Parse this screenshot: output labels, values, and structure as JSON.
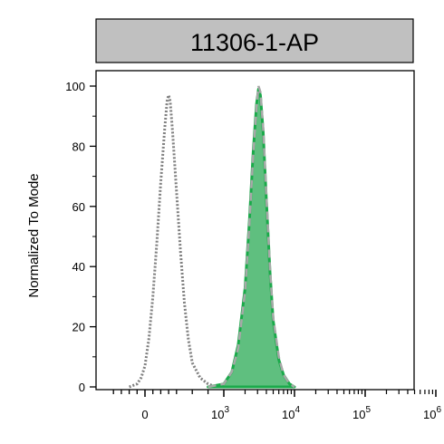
{
  "chart_data": {
    "type": "histogram",
    "title": "11306-1-AP",
    "ylabel": "Normalized To Mode",
    "xlabel": "",
    "x_scale": "biexponential",
    "ylim": [
      0,
      100
    ],
    "y_ticks": [
      0,
      20,
      40,
      60,
      80,
      100
    ],
    "x_ticks": [
      {
        "value": 0,
        "base": "0",
        "exp": ""
      },
      {
        "value": 1000,
        "base": "10",
        "exp": "3"
      },
      {
        "value": 10000,
        "base": "10",
        "exp": "4"
      },
      {
        "value": 100000,
        "base": "10",
        "exp": "5"
      },
      {
        "value": 1000000,
        "base": "10",
        "exp": "6"
      }
    ],
    "series": [
      {
        "style": "dotted",
        "color": "#808080",
        "points": [
          [
            -200,
            0
          ],
          [
            -100,
            1
          ],
          [
            -50,
            3
          ],
          [
            0,
            7
          ],
          [
            50,
            16
          ],
          [
            100,
            30
          ],
          [
            150,
            48
          ],
          [
            200,
            68
          ],
          [
            250,
            86
          ],
          [
            280,
            95
          ],
          [
            300,
            97
          ],
          [
            320,
            95
          ],
          [
            350,
            85
          ],
          [
            400,
            65
          ],
          [
            450,
            45
          ],
          [
            500,
            28
          ],
          [
            550,
            16
          ],
          [
            600,
            8
          ],
          [
            700,
            3
          ],
          [
            800,
            1
          ],
          [
            900,
            0
          ]
        ]
      },
      {
        "style": "filled",
        "color": "#1aaa4a",
        "fill": "#5fbf7f",
        "points": [
          [
            800,
            0
          ],
          [
            1000,
            1
          ],
          [
            1300,
            5
          ],
          [
            1600,
            14
          ],
          [
            2000,
            33
          ],
          [
            2300,
            55
          ],
          [
            2600,
            78
          ],
          [
            2900,
            94
          ],
          [
            3100,
            99
          ],
          [
            3300,
            97
          ],
          [
            3600,
            85
          ],
          [
            4000,
            62
          ],
          [
            4500,
            38
          ],
          [
            5000,
            22
          ],
          [
            6000,
            9
          ],
          [
            7000,
            4
          ],
          [
            8500,
            1
          ],
          [
            10000,
            0
          ]
        ]
      },
      {
        "style": "dashed",
        "color": "#a8a8a8",
        "points": [
          [
            800,
            0
          ],
          [
            1000,
            1
          ],
          [
            1300,
            5
          ],
          [
            1600,
            13
          ],
          [
            2000,
            32
          ],
          [
            2300,
            54
          ],
          [
            2600,
            77
          ],
          [
            2900,
            93
          ],
          [
            3100,
            100
          ],
          [
            3300,
            98
          ],
          [
            3600,
            86
          ],
          [
            4000,
            63
          ],
          [
            4500,
            39
          ],
          [
            5000,
            23
          ],
          [
            6000,
            10
          ],
          [
            7000,
            4
          ],
          [
            8500,
            1
          ],
          [
            10000,
            0
          ]
        ]
      }
    ]
  }
}
